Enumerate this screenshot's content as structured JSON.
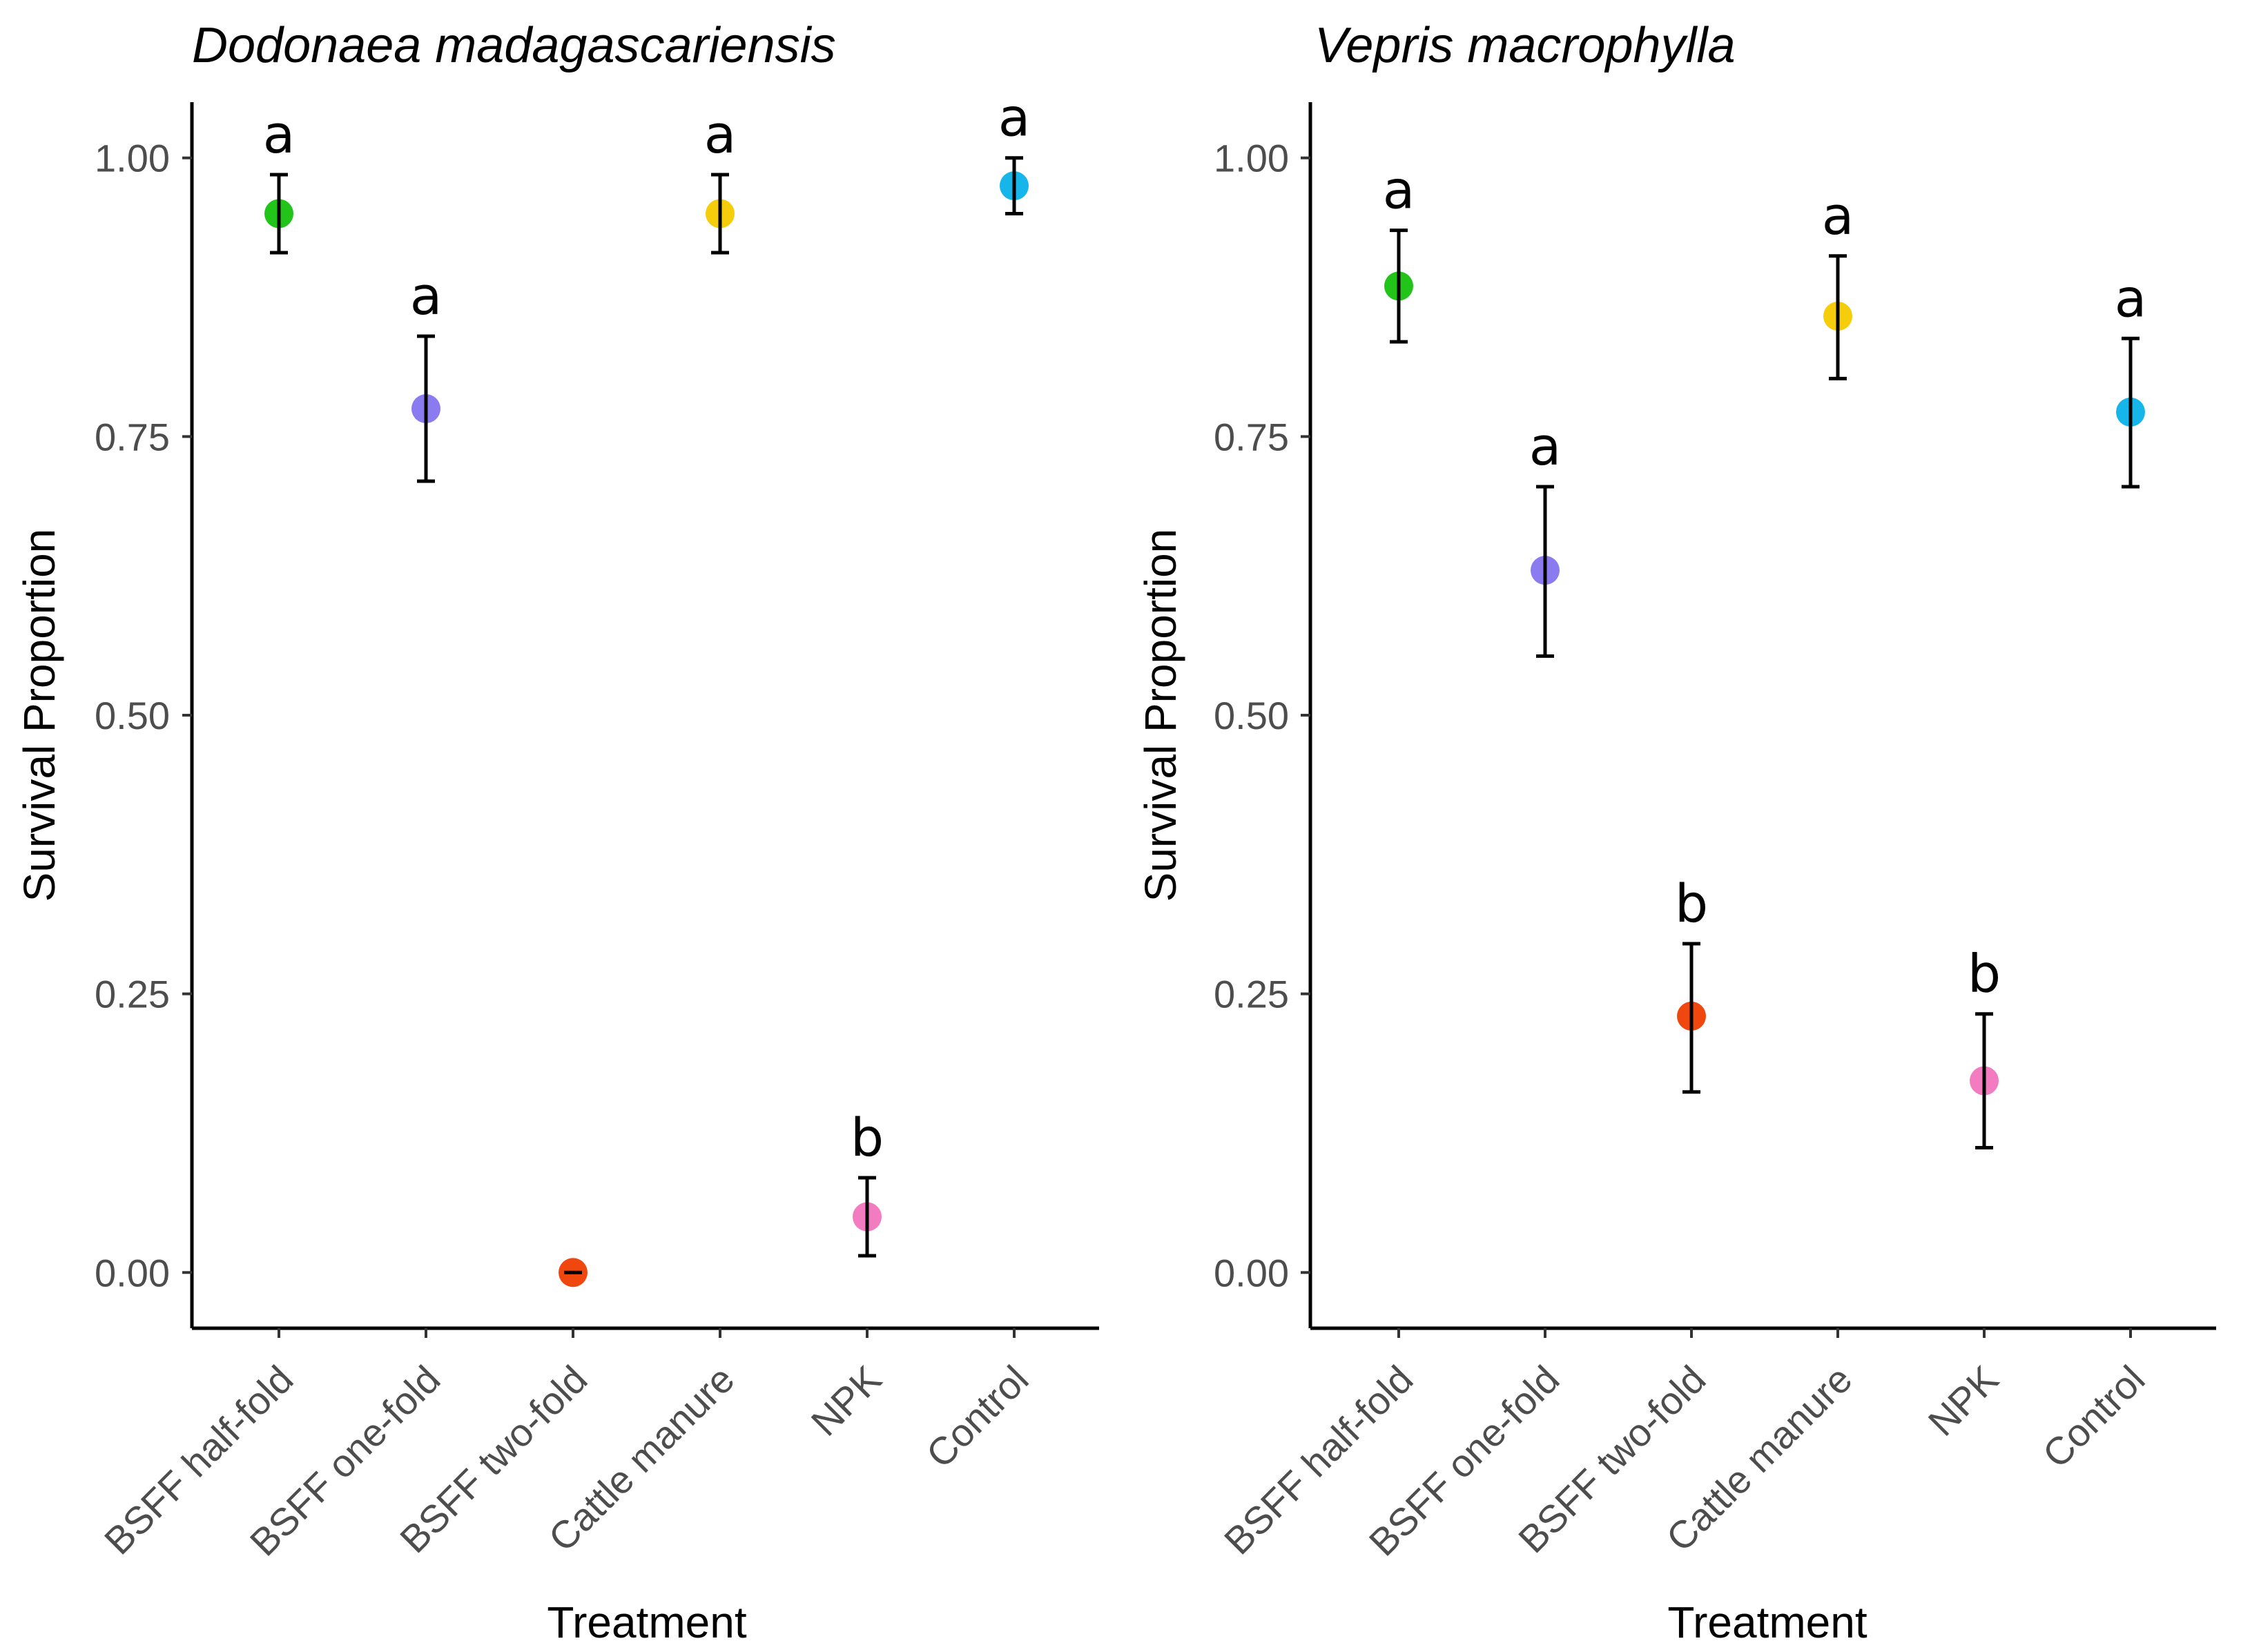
{
  "chart_data": [
    {
      "type": "scatter",
      "title": "Dodonaea madagascariensis",
      "xlabel": "Treatment",
      "ylabel": "Survival Proportion",
      "ylim": [
        -0.05,
        1.05
      ],
      "yticks": [
        "0.00",
        "0.25",
        "0.50",
        "0.75",
        "1.00"
      ],
      "categories": [
        "BSFF half-fold",
        "BSFF one-fold",
        "BSFF two-fold",
        "Cattle manure",
        "NPK",
        "Control"
      ],
      "values": [
        0.95,
        0.775,
        0.0,
        0.95,
        0.05,
        0.975
      ],
      "error_low": [
        0.915,
        0.71,
        0.0,
        0.915,
        0.015,
        0.95
      ],
      "error_high": [
        0.985,
        0.84,
        0.0,
        0.985,
        0.085,
        1.0
      ],
      "significance": [
        "a",
        "a",
        "",
        "a",
        "b",
        "a"
      ],
      "colors": [
        "#22c41a",
        "#8a7cf0",
        "#f0470f",
        "#f6cd0b",
        "#f37bbf",
        "#16b6ea"
      ]
    },
    {
      "type": "scatter",
      "title": "Vepris macrophylla",
      "xlabel": "Treatment",
      "ylabel": "Survival Proportion",
      "ylim": [
        -0.05,
        1.05
      ],
      "yticks": [
        "0.00",
        "0.25",
        "0.50",
        "0.75",
        "1.00"
      ],
      "categories": [
        "BSFF half-fold",
        "BSFF one-fold",
        "BSFF two-fold",
        "Cattle manure",
        "NPK",
        "Control"
      ],
      "values": [
        0.885,
        0.63,
        0.23,
        0.858,
        0.172,
        0.772
      ],
      "error_low": [
        0.835,
        0.553,
        0.162,
        0.802,
        0.112,
        0.705
      ],
      "error_high": [
        0.935,
        0.705,
        0.295,
        0.912,
        0.232,
        0.838
      ],
      "significance": [
        "a",
        "a",
        "b",
        "a",
        "b",
        "a"
      ],
      "colors": [
        "#22c41a",
        "#8a7cf0",
        "#f0470f",
        "#f6cd0b",
        "#f37bbf",
        "#16b6ea"
      ]
    }
  ]
}
